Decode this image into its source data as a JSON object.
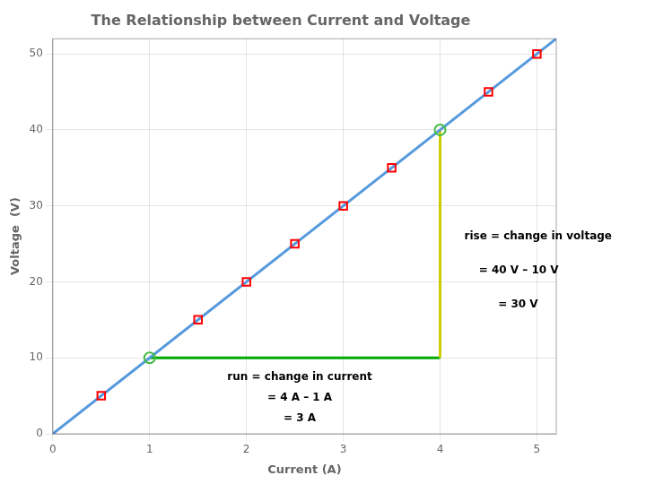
{
  "chart_data": {
    "type": "scatter",
    "title": "The Relationship between Current and Voltage",
    "xlabel": "Current (A)",
    "ylabel": "Voltage  (V)",
    "xlim": [
      0,
      5.2
    ],
    "ylim": [
      0,
      52
    ],
    "xticks": [
      0,
      1,
      2,
      3,
      4,
      5
    ],
    "yticks": [
      0,
      10,
      20,
      30,
      40,
      50
    ],
    "grid": true,
    "series": [
      {
        "type": "line",
        "color": "#5599dd",
        "x": [
          0,
          5.2
        ],
        "values": [
          0,
          52
        ]
      },
      {
        "type": "scatter",
        "marker": "square",
        "color": "#ff0000",
        "x": [
          0.5,
          1.5,
          2.0,
          2.5,
          3.0,
          3.5,
          4.5,
          5.0
        ],
        "values": [
          5.0,
          15.0,
          20.0,
          25.0,
          30.0,
          35.0,
          45.0,
          50.0
        ]
      },
      {
        "type": "scatter",
        "marker": "circle",
        "color": "#44bb44",
        "x": [
          1.0,
          4.0
        ],
        "values": [
          10.0,
          40.0
        ]
      },
      {
        "type": "line",
        "color": "#cccc00",
        "x": [
          4.0,
          4.0
        ],
        "values": [
          10.0,
          40.0
        ]
      },
      {
        "type": "line",
        "color": "#00aa00",
        "x": [
          1.0,
          4.0
        ],
        "values": [
          10.0,
          10.0
        ]
      }
    ],
    "annotations": [
      {
        "text": "rise = change in voltage",
        "x": 4.25,
        "y": 26.0,
        "align": "left"
      },
      {
        "text": "= 40 V – 10 V",
        "x": 4.4,
        "y": 21.5,
        "align": "left"
      },
      {
        "text": "= 30 V",
        "x": 4.6,
        "y": 17.0,
        "align": "left"
      },
      {
        "text": "run = change in current",
        "x": 2.55,
        "y": 7.5,
        "align": "center"
      },
      {
        "text": "= 4 A – 1 A",
        "x": 2.55,
        "y": 4.7,
        "align": "center"
      },
      {
        "text": "= 3 A",
        "x": 2.55,
        "y": 2.0,
        "align": "center"
      }
    ]
  }
}
